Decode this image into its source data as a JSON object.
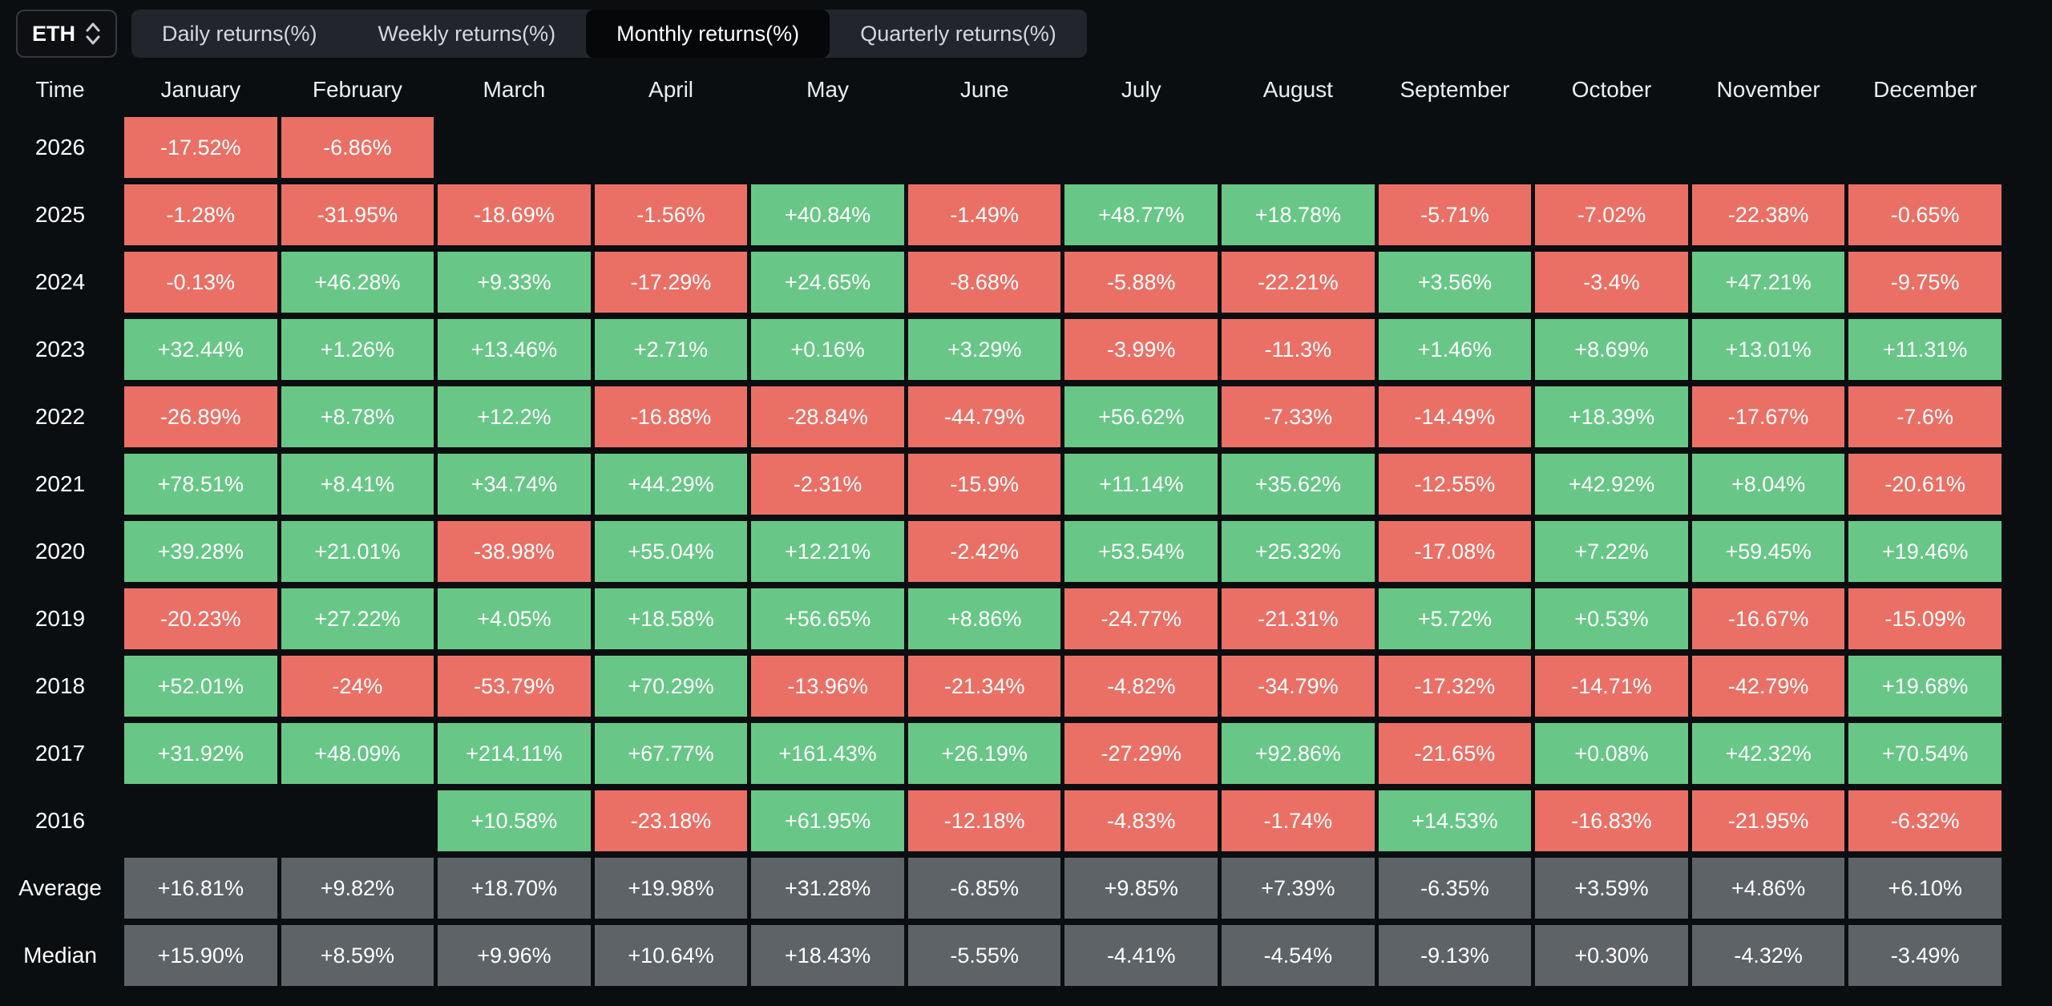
{
  "controls": {
    "asset": "ETH",
    "tabs": [
      {
        "label": "Daily returns(%)",
        "active": false
      },
      {
        "label": "Weekly returns(%)",
        "active": false
      },
      {
        "label": "Monthly returns(%)",
        "active": true
      },
      {
        "label": "Quarterly returns(%)",
        "active": false
      }
    ]
  },
  "table": {
    "time_label": "Time",
    "months": [
      "January",
      "February",
      "March",
      "April",
      "May",
      "June",
      "July",
      "August",
      "September",
      "October",
      "November",
      "December"
    ],
    "rows": [
      {
        "label": "2026",
        "type": "year",
        "values": [
          "-17.52%",
          "-6.86%",
          "",
          "",
          "",
          "",
          "",
          "",
          "",
          "",
          "",
          ""
        ]
      },
      {
        "label": "2025",
        "type": "year",
        "values": [
          "-1.28%",
          "-31.95%",
          "-18.69%",
          "-1.56%",
          "+40.84%",
          "-1.49%",
          "+48.77%",
          "+18.78%",
          "-5.71%",
          "-7.02%",
          "-22.38%",
          "-0.65%"
        ]
      },
      {
        "label": "2024",
        "type": "year",
        "values": [
          "-0.13%",
          "+46.28%",
          "+9.33%",
          "-17.29%",
          "+24.65%",
          "-8.68%",
          "-5.88%",
          "-22.21%",
          "+3.56%",
          "-3.4%",
          "+47.21%",
          "-9.75%"
        ]
      },
      {
        "label": "2023",
        "type": "year",
        "values": [
          "+32.44%",
          "+1.26%",
          "+13.46%",
          "+2.71%",
          "+0.16%",
          "+3.29%",
          "-3.99%",
          "-11.3%",
          "+1.46%",
          "+8.69%",
          "+13.01%",
          "+11.31%"
        ]
      },
      {
        "label": "2022",
        "type": "year",
        "values": [
          "-26.89%",
          "+8.78%",
          "+12.2%",
          "-16.88%",
          "-28.84%",
          "-44.79%",
          "+56.62%",
          "-7.33%",
          "-14.49%",
          "+18.39%",
          "-17.67%",
          "-7.6%"
        ]
      },
      {
        "label": "2021",
        "type": "year",
        "values": [
          "+78.51%",
          "+8.41%",
          "+34.74%",
          "+44.29%",
          "-2.31%",
          "-15.9%",
          "+11.14%",
          "+35.62%",
          "-12.55%",
          "+42.92%",
          "+8.04%",
          "-20.61%"
        ]
      },
      {
        "label": "2020",
        "type": "year",
        "values": [
          "+39.28%",
          "+21.01%",
          "-38.98%",
          "+55.04%",
          "+12.21%",
          "-2.42%",
          "+53.54%",
          "+25.32%",
          "-17.08%",
          "+7.22%",
          "+59.45%",
          "+19.46%"
        ]
      },
      {
        "label": "2019",
        "type": "year",
        "values": [
          "-20.23%",
          "+27.22%",
          "+4.05%",
          "+18.58%",
          "+56.65%",
          "+8.86%",
          "-24.77%",
          "-21.31%",
          "+5.72%",
          "+0.53%",
          "-16.67%",
          "-15.09%"
        ]
      },
      {
        "label": "2018",
        "type": "year",
        "values": [
          "+52.01%",
          "-24%",
          "-53.79%",
          "+70.29%",
          "-13.96%",
          "-21.34%",
          "-4.82%",
          "-34.79%",
          "-17.32%",
          "-14.71%",
          "-42.79%",
          "+19.68%"
        ]
      },
      {
        "label": "2017",
        "type": "year",
        "values": [
          "+31.92%",
          "+48.09%",
          "+214.11%",
          "+67.77%",
          "+161.43%",
          "+26.19%",
          "-27.29%",
          "+92.86%",
          "-21.65%",
          "+0.08%",
          "+42.32%",
          "+70.54%"
        ]
      },
      {
        "label": "2016",
        "type": "year",
        "values": [
          "",
          "",
          "+10.58%",
          "-23.18%",
          "+61.95%",
          "-12.18%",
          "-4.83%",
          "-1.74%",
          "+14.53%",
          "-16.83%",
          "-21.95%",
          "-6.32%"
        ]
      },
      {
        "label": "Average",
        "type": "summary",
        "values": [
          "+16.81%",
          "+9.82%",
          "+18.70%",
          "+19.98%",
          "+31.28%",
          "-6.85%",
          "+9.85%",
          "+7.39%",
          "-6.35%",
          "+3.59%",
          "+4.86%",
          "+6.10%"
        ]
      },
      {
        "label": "Median",
        "type": "summary",
        "values": [
          "+15.90%",
          "+8.59%",
          "+9.96%",
          "+10.64%",
          "+18.43%",
          "-5.55%",
          "-4.41%",
          "-4.54%",
          "-9.13%",
          "+0.30%",
          "-4.32%",
          "-3.49%"
        ]
      }
    ]
  },
  "colors": {
    "background": "#0b0e11",
    "positive": "#68c787",
    "negative": "#ea7066",
    "summary": "#5e6367"
  }
}
